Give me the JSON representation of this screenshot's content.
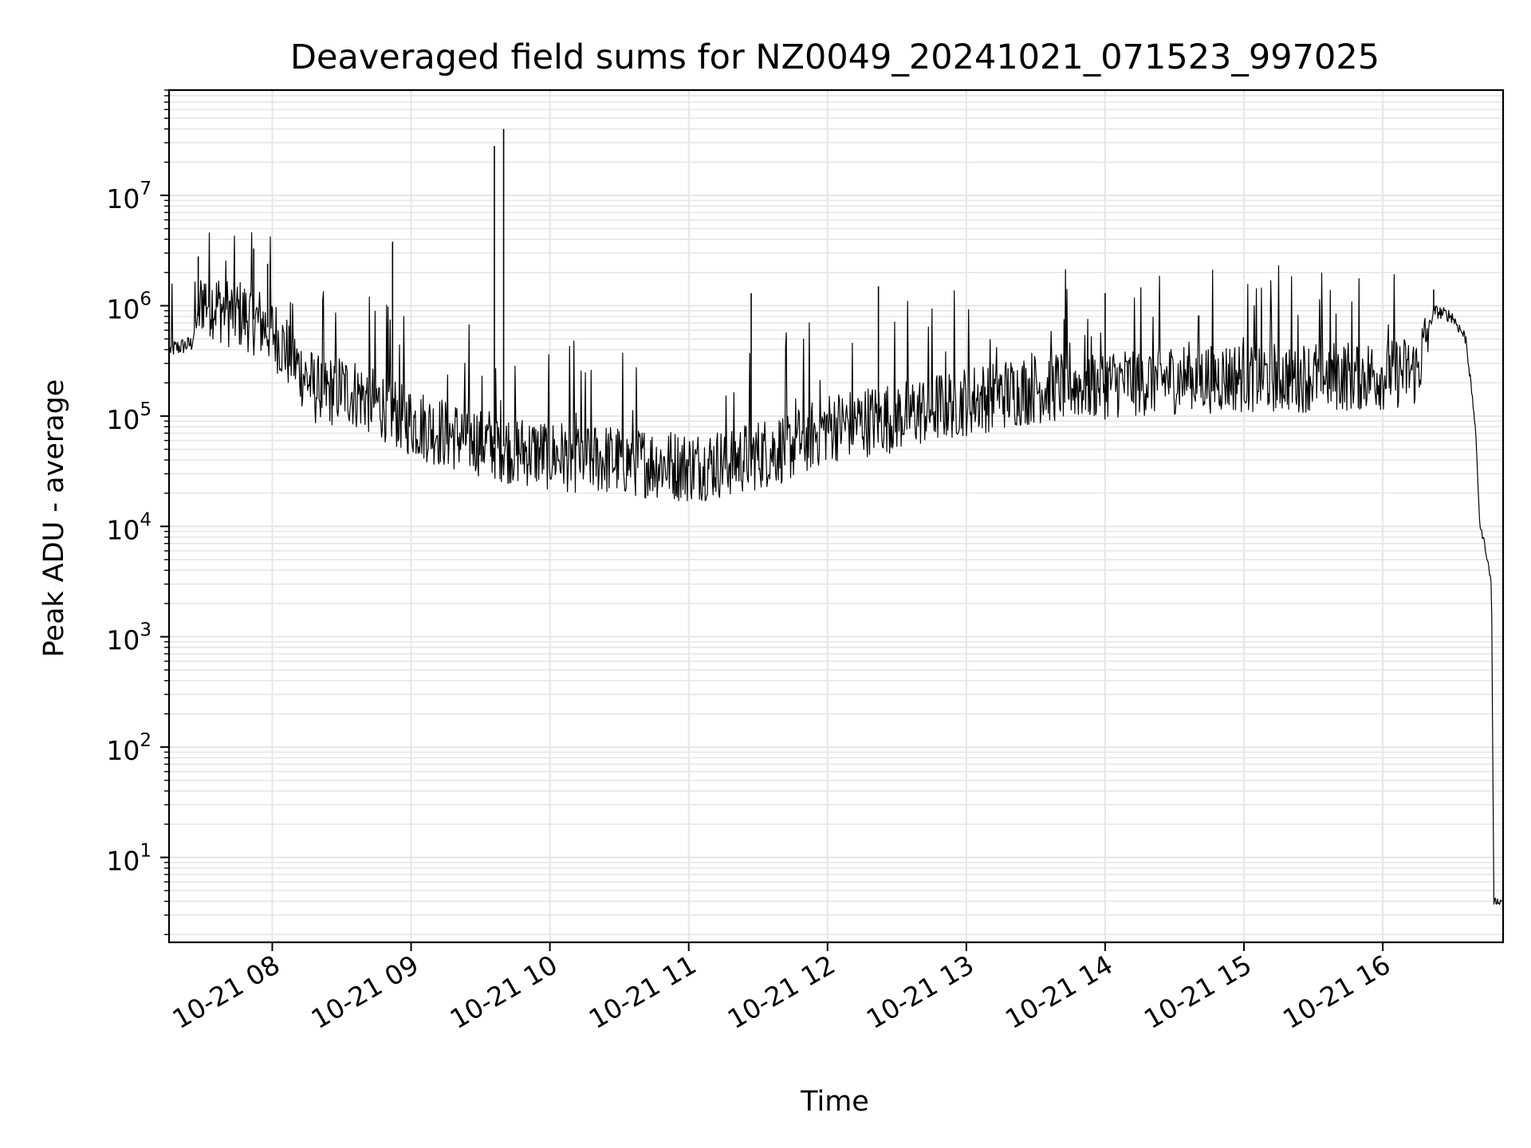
{
  "chart_data": {
    "type": "line",
    "title": "Deaveraged field sums for NZ0049_20241021_071523_997025",
    "xlabel": "Time",
    "ylabel": "Peak ADU - average",
    "yscale": "log",
    "xlim": [
      "2024-10-21T07:15:23",
      "2024-10-21T16:52:00"
    ],
    "ylim": [
      1.7,
      90000000
    ],
    "grid": true,
    "line_color": "#000000",
    "grid_color": "#e6e6e6",
    "x_ticks": [
      {
        "value": "2024-10-21T08:00:00",
        "label": "10-21 08"
      },
      {
        "value": "2024-10-21T09:00:00",
        "label": "10-21 09"
      },
      {
        "value": "2024-10-21T10:00:00",
        "label": "10-21 10"
      },
      {
        "value": "2024-10-21T11:00:00",
        "label": "10-21 11"
      },
      {
        "value": "2024-10-21T12:00:00",
        "label": "10-21 12"
      },
      {
        "value": "2024-10-21T13:00:00",
        "label": "10-21 13"
      },
      {
        "value": "2024-10-21T14:00:00",
        "label": "10-21 14"
      },
      {
        "value": "2024-10-21T15:00:00",
        "label": "10-21 15"
      },
      {
        "value": "2024-10-21T16:00:00",
        "label": "10-21 16"
      }
    ],
    "y_ticks": [
      {
        "value": 10,
        "base": "10",
        "exp": "1"
      },
      {
        "value": 100,
        "base": "10",
        "exp": "2"
      },
      {
        "value": 1000,
        "base": "10",
        "exp": "3"
      },
      {
        "value": 10000,
        "base": "10",
        "exp": "4"
      },
      {
        "value": 100000,
        "base": "10",
        "exp": "5"
      },
      {
        "value": 1000000,
        "base": "10",
        "exp": "6"
      },
      {
        "value": 10000000,
        "base": "10",
        "exp": "7"
      }
    ],
    "series": [
      {
        "x": [
          "2024-10-21T07:15:23",
          "2024-10-21T07:25:00",
          "2024-10-21T07:30:00",
          "2024-10-21T07:40:00",
          "2024-10-21T07:50:00",
          "2024-10-21T08:00:00",
          "2024-10-21T08:10:00",
          "2024-10-21T08:20:00",
          "2024-10-21T08:30:00",
          "2024-10-21T08:40:00",
          "2024-10-21T08:50:00",
          "2024-10-21T09:00:00",
          "2024-10-21T09:15:00",
          "2024-10-21T09:30:00",
          "2024-10-21T09:45:00",
          "2024-10-21T10:00:00",
          "2024-10-21T10:15:00",
          "2024-10-21T10:30:00",
          "2024-10-21T10:45:00",
          "2024-10-21T11:00:00",
          "2024-10-21T11:15:00",
          "2024-10-21T11:30:00",
          "2024-10-21T11:45:00",
          "2024-10-21T12:00:00",
          "2024-10-21T12:30:00",
          "2024-10-21T13:00:00",
          "2024-10-21T13:30:00",
          "2024-10-21T14:00:00",
          "2024-10-21T14:30:00",
          "2024-10-21T15:00:00",
          "2024-10-21T15:30:00",
          "2024-10-21T16:00:00",
          "2024-10-21T16:15:00",
          "2024-10-21T16:22:00",
          "2024-10-21T16:30:00",
          "2024-10-21T16:36:00",
          "2024-10-21T16:40:00",
          "2024-10-21T16:42:00",
          "2024-10-21T16:44:00",
          "2024-10-21T16:47:00",
          "2024-10-21T16:48:00",
          "2024-10-21T16:52:00"
        ],
        "y": [
          400000,
          450000,
          1200000,
          900000,
          800000,
          600000,
          300000,
          160000,
          180000,
          150000,
          120000,
          90000,
          70000,
          60000,
          50000,
          45000,
          42000,
          40000,
          38000,
          35000,
          38000,
          45000,
          55000,
          80000,
          100000,
          140000,
          180000,
          200000,
          220000,
          230000,
          230000,
          240000,
          260000,
          900000,
          800000,
          500000,
          80000,
          10000,
          7000,
          3000,
          4,
          4
        ],
        "spikes": [
          {
            "x": "2024-10-21T07:28:00",
            "y": 2800000
          },
          {
            "x": "2024-10-21T07:52:00",
            "y": 3300000
          },
          {
            "x": "2024-10-21T07:58:00",
            "y": 2400000
          },
          {
            "x": "2024-10-21T08:52:00",
            "y": 3800000
          },
          {
            "x": "2024-10-21T09:36:00",
            "y": 28000000
          },
          {
            "x": "2024-10-21T09:40:00",
            "y": 40000000
          },
          {
            "x": "2024-10-21T11:27:00",
            "y": 1300000
          },
          {
            "x": "2024-10-21T12:22:00",
            "y": 1500000
          },
          {
            "x": "2024-10-21T14:00:00",
            "y": 1300000
          },
          {
            "x": "2024-10-21T16:22:00",
            "y": 1400000
          }
        ]
      }
    ]
  }
}
